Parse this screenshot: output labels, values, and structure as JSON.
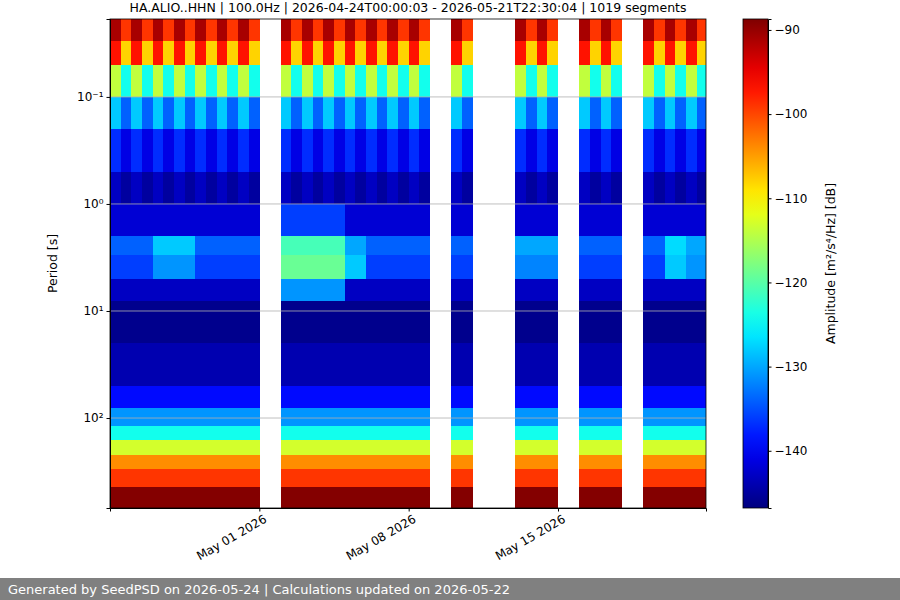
{
  "chart_data": {
    "type": "heatmap",
    "title": "HA.ALIO..HHN | 100.0Hz | 2026-04-24T00:00:03 - 2026-05-21T22:30:04 | 1019 segments",
    "y_label": "Period [s]",
    "footer": "Generated by SeedPSD on 2026-05-24 | Calculations updated on 2026-05-22",
    "log": "y",
    "grid": "y",
    "xlim": [
      "2026-04-24T00:00:03",
      "2026-05-21T22:30:04"
    ],
    "ylim": [
      0.0187,
      693
    ],
    "xticks": [
      {
        "value": "2026-05-01T00:00:00",
        "label": "May 01 2026"
      },
      {
        "value": "2026-05-08T00:00:00",
        "label": "May 08 2026"
      },
      {
        "value": "2026-05-15T00:00:00",
        "label": "May 15 2026"
      }
    ],
    "yticks": [
      {
        "value": 0.1,
        "label": "10⁻¹"
      },
      {
        "value": 1,
        "label": "10⁰"
      },
      {
        "value": 10,
        "label": "10¹"
      },
      {
        "value": 100,
        "label": "10²"
      }
    ],
    "colorbar": {
      "label": "Amplitude [m²/s⁴/Hz] [dB]",
      "lim": [
        -146.8,
        -88.7
      ],
      "ticks": [
        {
          "value": -90,
          "label": "−90"
        },
        {
          "value": -100,
          "label": "−100"
        },
        {
          "value": -110,
          "label": "−110"
        },
        {
          "value": -120,
          "label": "−120"
        },
        {
          "value": -130,
          "label": "−130"
        },
        {
          "value": -140,
          "label": "−140"
        }
      ]
    },
    "x": [
      "2026-04-24T00:00:00",
      "2026-04-24T12:00:00",
      "2026-04-25T00:00:00",
      "2026-04-25T12:00:00",
      "2026-04-26T00:00:00",
      "2026-04-26T12:00:00",
      "2026-04-27T00:00:00",
      "2026-04-27T12:00:00",
      "2026-04-28T00:00:00",
      "2026-04-28T12:00:00",
      "2026-04-29T00:00:00",
      "2026-04-29T12:00:00",
      "2026-04-30T00:00:00",
      "2026-04-30T12:00:00",
      "2026-05-01T00:00:00",
      "2026-05-01T12:00:00",
      "2026-05-02T00:00:00",
      "2026-05-02T12:00:00",
      "2026-05-03T00:00:00",
      "2026-05-03T12:00:00",
      "2026-05-04T00:00:00",
      "2026-05-04T12:00:00",
      "2026-05-05T00:00:00",
      "2026-05-05T12:00:00",
      "2026-05-06T00:00:00",
      "2026-05-06T12:00:00",
      "2026-05-07T00:00:00",
      "2026-05-07T12:00:00",
      "2026-05-08T00:00:00",
      "2026-05-08T12:00:00",
      "2026-05-09T00:00:00",
      "2026-05-09T12:00:00",
      "2026-05-10T00:00:00",
      "2026-05-10T12:00:00",
      "2026-05-11T00:00:00",
      "2026-05-11T12:00:00",
      "2026-05-12T00:00:00",
      "2026-05-12T12:00:00",
      "2026-05-13T00:00:00",
      "2026-05-13T12:00:00",
      "2026-05-14T00:00:00",
      "2026-05-14T12:00:00",
      "2026-05-15T00:00:00",
      "2026-05-15T12:00:00",
      "2026-05-16T00:00:00",
      "2026-05-16T12:00:00",
      "2026-05-17T00:00:00",
      "2026-05-17T12:00:00",
      "2026-05-18T00:00:00",
      "2026-05-18T12:00:00",
      "2026-05-19T00:00:00",
      "2026-05-19T12:00:00",
      "2026-05-20T00:00:00",
      "2026-05-20T12:00:00",
      "2026-05-21T00:00:00",
      "2026-05-21T12:00:00",
      "2026-05-22T00:00:00"
    ],
    "y": [
      0.0187,
      0.03,
      0.05,
      0.1,
      0.2,
      0.5,
      1,
      2,
      3,
      5,
      8,
      20,
      50,
      80,
      120,
      160,
      220,
      300,
      440,
      693
    ],
    "z": [
      [
        -91,
        -99,
        -91,
        -99,
        -91,
        -99,
        -91,
        -99,
        -91,
        -99,
        -91,
        -99,
        -91,
        -99,
        null,
        null,
        -91,
        -99,
        -91,
        -99,
        -91,
        -99,
        -91,
        -99,
        -91,
        -99,
        -91,
        -99,
        -91,
        -99,
        null,
        null,
        -91,
        -99,
        null,
        null,
        null,
        null,
        -91,
        -99,
        -91,
        -99,
        null,
        null,
        -91,
        -99,
        -91,
        -99,
        null,
        null,
        -91,
        -99,
        -91,
        -99,
        -91,
        -99
      ],
      [
        -97,
        -108,
        -97,
        -108,
        -97,
        -108,
        -97,
        -108,
        -97,
        -108,
        -97,
        -108,
        -97,
        -108,
        null,
        null,
        -97,
        -108,
        -97,
        -108,
        -97,
        -108,
        -97,
        -108,
        -97,
        -108,
        -97,
        -108,
        -97,
        -108,
        null,
        null,
        -97,
        -108,
        null,
        null,
        null,
        null,
        -97,
        -108,
        -97,
        -108,
        null,
        null,
        -97,
        -108,
        -97,
        -108,
        null,
        null,
        -97,
        -108,
        -97,
        -108,
        -97,
        -108
      ],
      [
        -114,
        -124,
        -114,
        -124,
        -114,
        -124,
        -114,
        -124,
        -114,
        -124,
        -114,
        -124,
        -114,
        -124,
        null,
        null,
        -114,
        -124,
        -114,
        -124,
        -114,
        -124,
        -114,
        -124,
        -114,
        -124,
        -114,
        -124,
        -114,
        -124,
        null,
        null,
        -114,
        -124,
        null,
        null,
        null,
        null,
        -114,
        -124,
        -114,
        -124,
        null,
        null,
        -114,
        -124,
        -114,
        -124,
        null,
        null,
        -114,
        -124,
        -114,
        -124,
        -114,
        -124
      ],
      [
        -128,
        -134,
        -128,
        -134,
        -128,
        -134,
        -128,
        -134,
        -128,
        -134,
        -128,
        -134,
        -128,
        -134,
        null,
        null,
        -128,
        -134,
        -128,
        -134,
        -128,
        -134,
        -128,
        -134,
        -128,
        -134,
        -128,
        -134,
        -128,
        -134,
        null,
        null,
        -128,
        -134,
        null,
        null,
        null,
        null,
        -128,
        -134,
        -128,
        -134,
        null,
        null,
        -128,
        -134,
        -128,
        -134,
        null,
        null,
        -128,
        -134,
        -128,
        -134,
        -128,
        -134
      ],
      [
        -137,
        -141,
        -137,
        -141,
        -137,
        -141,
        -137,
        -141,
        -137,
        -141,
        -137,
        -141,
        -137,
        -141,
        null,
        null,
        -137,
        -141,
        -137,
        -141,
        -137,
        -141,
        -137,
        -141,
        -137,
        -141,
        -137,
        -141,
        -137,
        -141,
        null,
        null,
        -137,
        -141,
        null,
        null,
        null,
        null,
        -137,
        -141,
        -137,
        -141,
        null,
        null,
        -137,
        -141,
        -137,
        -141,
        null,
        null,
        -137,
        -141,
        -137,
        -141,
        -137,
        -141
      ],
      [
        -143,
        -145,
        -143,
        -145,
        -143,
        -145,
        -143,
        -145,
        -143,
        -145,
        -143,
        -145,
        -143,
        -145,
        null,
        null,
        -143,
        -145,
        -143,
        -145,
        -143,
        -145,
        -143,
        -145,
        -143,
        -145,
        -143,
        -145,
        -143,
        -145,
        null,
        null,
        -143,
        -145,
        null,
        null,
        null,
        null,
        -143,
        -145,
        -143,
        -145,
        null,
        null,
        -143,
        -145,
        -143,
        -145,
        null,
        null,
        -143,
        -145,
        -143,
        -145,
        -143,
        -145
      ],
      [
        -142,
        -142,
        -142,
        -142,
        -142,
        -142,
        -142,
        -142,
        -142,
        -142,
        -142,
        -142,
        -142,
        -142,
        null,
        null,
        -136,
        -136,
        -136,
        -136,
        -136,
        -136,
        -142,
        -142,
        -142,
        -142,
        -142,
        -142,
        -142,
        -142,
        null,
        null,
        -142,
        -142,
        null,
        null,
        null,
        null,
        -142,
        -142,
        -142,
        -142,
        null,
        null,
        -142,
        -142,
        -142,
        -142,
        null,
        null,
        -142,
        -142,
        -142,
        -142,
        -142,
        -142
      ],
      [
        -134,
        -134,
        -134,
        -134,
        -128,
        -128,
        -128,
        -128,
        -134,
        -134,
        -134,
        -134,
        -134,
        -134,
        null,
        null,
        -121,
        -121,
        -121,
        -121,
        -121,
        -121,
        -130,
        -130,
        -134,
        -134,
        -134,
        -134,
        -134,
        -134,
        null,
        null,
        -134,
        -134,
        null,
        null,
        null,
        null,
        -130,
        -130,
        -130,
        -130,
        null,
        null,
        -134,
        -134,
        -134,
        -134,
        null,
        null,
        -134,
        -134,
        -127,
        -127,
        -130,
        -130
      ],
      [
        -136,
        -136,
        -136,
        -136,
        -131,
        -131,
        -131,
        -131,
        -136,
        -136,
        -136,
        -136,
        -136,
        -136,
        null,
        null,
        -119,
        -119,
        -119,
        -119,
        -119,
        -119,
        -128,
        -128,
        -136,
        -136,
        -136,
        -136,
        -136,
        -136,
        null,
        null,
        -136,
        -136,
        null,
        null,
        null,
        null,
        -132,
        -132,
        -132,
        -132,
        null,
        null,
        -136,
        -136,
        -136,
        -136,
        null,
        null,
        -136,
        -136,
        -128,
        -128,
        -131,
        -131
      ],
      [
        -143,
        -143,
        -143,
        -143,
        -143,
        -143,
        -143,
        -143,
        -143,
        -143,
        -143,
        -143,
        -143,
        -143,
        null,
        null,
        -131,
        -131,
        -131,
        -131,
        -131,
        -131,
        -143,
        -143,
        -143,
        -143,
        -143,
        -143,
        -143,
        -143,
        null,
        null,
        -143,
        -143,
        null,
        null,
        null,
        null,
        -143,
        -143,
        -143,
        -143,
        null,
        null,
        -143,
        -143,
        -143,
        -143,
        null,
        null,
        -143,
        -143,
        -143,
        -143,
        -143,
        -143
      ],
      [
        -146,
        -146,
        -146,
        -146,
        -146,
        -146,
        -146,
        -146,
        -146,
        -146,
        -146,
        -146,
        -146,
        -146,
        null,
        null,
        -146,
        -146,
        -146,
        -146,
        -146,
        -146,
        -146,
        -146,
        -146,
        -146,
        -146,
        -146,
        -146,
        -146,
        null,
        null,
        -146,
        -146,
        null,
        null,
        null,
        null,
        -146,
        -146,
        -146,
        -146,
        null,
        null,
        -146,
        -146,
        -146,
        -146,
        null,
        null,
        -146,
        -146,
        -146,
        -146,
        -146,
        -146
      ],
      [
        -144,
        -144,
        -144,
        -144,
        -144,
        -144,
        -144,
        -144,
        -144,
        -144,
        -144,
        -144,
        -144,
        -144,
        null,
        null,
        -144,
        -144,
        -144,
        -144,
        -144,
        -144,
        -144,
        -144,
        -144,
        -144,
        -144,
        -144,
        -144,
        -144,
        null,
        null,
        -144,
        -144,
        null,
        null,
        null,
        null,
        -144,
        -144,
        -144,
        -144,
        null,
        null,
        -144,
        -144,
        -144,
        -144,
        null,
        null,
        -144,
        -144,
        -144,
        -144,
        -144,
        -144
      ],
      [
        -139,
        -139,
        -139,
        -139,
        -139,
        -139,
        -139,
        -139,
        -139,
        -139,
        -139,
        -139,
        -139,
        -139,
        null,
        null,
        -139,
        -139,
        -139,
        -139,
        -139,
        -139,
        -139,
        -139,
        -139,
        -139,
        -139,
        -139,
        -139,
        -139,
        null,
        null,
        -139,
        -139,
        null,
        null,
        null,
        null,
        -139,
        -139,
        -139,
        -139,
        null,
        null,
        -139,
        -139,
        -139,
        -139,
        null,
        null,
        -139,
        -139,
        -139,
        -139,
        -139,
        -139
      ],
      [
        -131,
        -131,
        -131,
        -131,
        -131,
        -131,
        -131,
        -131,
        -131,
        -131,
        -131,
        -131,
        -131,
        -131,
        null,
        null,
        -131,
        -131,
        -131,
        -131,
        -131,
        -131,
        -131,
        -131,
        -131,
        -131,
        -131,
        -131,
        -131,
        -131,
        null,
        null,
        -131,
        -131,
        null,
        null,
        null,
        null,
        -131,
        -131,
        -131,
        -131,
        null,
        null,
        -131,
        -131,
        -131,
        -131,
        null,
        null,
        -131,
        -131,
        -131,
        -131,
        -131,
        -131
      ],
      [
        -124,
        -124,
        -124,
        -124,
        -124,
        -124,
        -124,
        -124,
        -124,
        -124,
        -124,
        -124,
        -124,
        -124,
        null,
        null,
        -124,
        -124,
        -124,
        -124,
        -124,
        -124,
        -124,
        -124,
        -124,
        -124,
        -124,
        -124,
        -124,
        -124,
        null,
        null,
        -124,
        -124,
        null,
        null,
        null,
        null,
        -124,
        -124,
        -124,
        -124,
        null,
        null,
        -124,
        -124,
        -124,
        -124,
        null,
        null,
        -124,
        -124,
        -124,
        -124,
        -124,
        -124
      ],
      [
        -113,
        -113,
        -113,
        -113,
        -113,
        -113,
        -113,
        -113,
        -113,
        -113,
        -113,
        -113,
        -113,
        -113,
        null,
        null,
        -113,
        -113,
        -113,
        -113,
        -113,
        -113,
        -113,
        -113,
        -113,
        -113,
        -113,
        -113,
        -113,
        -113,
        null,
        null,
        -113,
        -113,
        null,
        null,
        null,
        null,
        -113,
        -113,
        -113,
        -113,
        null,
        null,
        -113,
        -113,
        -113,
        -113,
        null,
        null,
        -113,
        -113,
        -113,
        -113,
        -113,
        -113
      ],
      [
        -104,
        -104,
        -104,
        -104,
        -104,
        -104,
        -104,
        -104,
        -104,
        -104,
        -104,
        -104,
        -104,
        -104,
        null,
        null,
        -104,
        -104,
        -104,
        -104,
        -104,
        -104,
        -104,
        -104,
        -104,
        -104,
        -104,
        -104,
        -104,
        -104,
        null,
        null,
        -104,
        -104,
        null,
        null,
        null,
        null,
        -104,
        -104,
        -104,
        -104,
        null,
        null,
        -104,
        -104,
        -104,
        -104,
        null,
        null,
        -104,
        -104,
        -104,
        -104,
        -104,
        -104
      ],
      [
        -99,
        -99,
        -99,
        -99,
        -99,
        -99,
        -99,
        -99,
        -99,
        -99,
        -99,
        -99,
        -99,
        -99,
        null,
        null,
        -99,
        -99,
        -99,
        -99,
        -99,
        -99,
        -99,
        -99,
        -99,
        -99,
        -99,
        -99,
        -99,
        -99,
        null,
        null,
        -99,
        -99,
        null,
        null,
        null,
        null,
        -99,
        -99,
        -99,
        -99,
        null,
        null,
        -99,
        -99,
        -99,
        -99,
        null,
        null,
        -99,
        -99,
        -99,
        -99,
        -99,
        -99
      ],
      [
        -89,
        -89,
        -89,
        -89,
        -89,
        -89,
        -89,
        -89,
        -89,
        -89,
        -89,
        -89,
        -89,
        -89,
        null,
        null,
        -89,
        -89,
        -89,
        -89,
        -89,
        -89,
        -89,
        -89,
        -89,
        -89,
        -89,
        -89,
        -89,
        -89,
        null,
        null,
        -89,
        -89,
        null,
        null,
        null,
        null,
        -89,
        -89,
        -89,
        -89,
        null,
        null,
        -89,
        -89,
        -89,
        -89,
        null,
        null,
        -89,
        -89,
        -89,
        -89,
        -89,
        -89
      ]
    ]
  }
}
